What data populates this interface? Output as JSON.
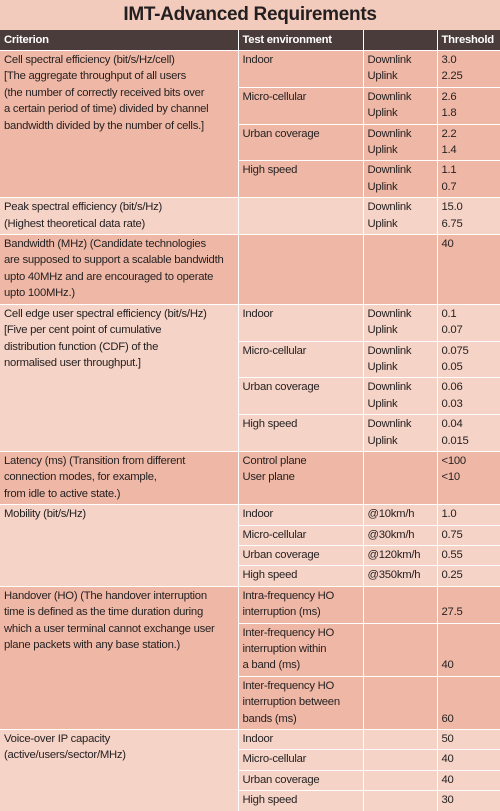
{
  "title": "IMT-Advanced Requirements",
  "headers": [
    "Criterion",
    "Test environment",
    "",
    "Threshold"
  ],
  "groups": [
    {
      "criterion": [
        "Cell spectral efficiency (bit/s/Hz/cell)",
        "[The aggregate throughput of all users",
        "(the number of correctly received bits over",
        "a certain period of time) divided by channel",
        "bandwidth divided by the number of cells.]"
      ],
      "rows": [
        {
          "env": [
            "Indoor"
          ],
          "dir": [
            "Downlink",
            "Uplink"
          ],
          "thr": [
            "3.0",
            "2.25"
          ]
        },
        {
          "env": [
            "Micro-cellular"
          ],
          "dir": [
            "Downlink",
            "Uplink"
          ],
          "thr": [
            "2.6",
            "1.8"
          ]
        },
        {
          "env": [
            "Urban coverage"
          ],
          "dir": [
            "Downlink",
            "Uplink"
          ],
          "thr": [
            "2.2",
            "1.4"
          ]
        },
        {
          "env": [
            "High speed"
          ],
          "dir": [
            "Downlink",
            "Uplink"
          ],
          "thr": [
            "1.1",
            "0.7"
          ]
        }
      ]
    },
    {
      "criterion": [
        "Peak spectral efficiency (bit/s/Hz)",
        "(Highest theoretical data rate)"
      ],
      "rows": [
        {
          "env": [],
          "dir": [
            "Downlink",
            "Uplink"
          ],
          "thr": [
            "15.0",
            "6.75"
          ]
        }
      ]
    },
    {
      "criterion": [
        "Bandwidth (MHz) (Candidate technologies",
        "are supposed to support a scalable bandwidth",
        "upto 40MHz and are encouraged to operate",
        "upto 100MHz.)"
      ],
      "rows": [
        {
          "env": [],
          "dir": [],
          "thr": [
            "40"
          ]
        }
      ]
    },
    {
      "criterion": [
        "Cell edge user spectral efficiency (bit/s/Hz)",
        "[Five per cent point of cumulative",
        "distribution function (CDF) of the",
        "normalised user throughput.]"
      ],
      "rows": [
        {
          "env": [
            "Indoor"
          ],
          "dir": [
            "Downlink",
            "Uplink"
          ],
          "thr": [
            "0.1",
            "0.07"
          ]
        },
        {
          "env": [
            "Micro-cellular"
          ],
          "dir": [
            "Downlink",
            "Uplink"
          ],
          "thr": [
            "0.075",
            "0.05"
          ]
        },
        {
          "env": [
            "Urban coverage"
          ],
          "dir": [
            "Downlink",
            "Uplink"
          ],
          "thr": [
            "0.06",
            "0.03"
          ]
        },
        {
          "env": [
            "High speed"
          ],
          "dir": [
            "Downlink",
            "Uplink"
          ],
          "thr": [
            "0.04",
            "0.015"
          ]
        }
      ]
    },
    {
      "criterion": [
        "Latency (ms) (Transition from different",
        "connection modes, for example,",
        "from idle to active state.)"
      ],
      "rows": [
        {
          "env": [
            "Control plane",
            "User plane"
          ],
          "dir": [],
          "thr": [
            "<100",
            "<10"
          ]
        }
      ]
    },
    {
      "criterion": [
        "Mobility (bit/s/Hz)"
      ],
      "rows": [
        {
          "env": [
            "Indoor"
          ],
          "dir": [
            "@10km/h"
          ],
          "thr": [
            "1.0"
          ]
        },
        {
          "env": [
            "Micro-cellular"
          ],
          "dir": [
            "@30km/h"
          ],
          "thr": [
            "0.75"
          ]
        },
        {
          "env": [
            "Urban coverage"
          ],
          "dir": [
            "@120km/h"
          ],
          "thr": [
            "0.55"
          ]
        },
        {
          "env": [
            "High speed"
          ],
          "dir": [
            "@350km/h"
          ],
          "thr": [
            "0.25"
          ]
        }
      ]
    },
    {
      "criterion": [
        "Handover (HO) (The handover interruption",
        "time is defined as the time duration during",
        "which a user terminal cannot exchange user",
        "plane packets with any base station.)"
      ],
      "rows": [
        {
          "env": [
            "Intra-frequency HO",
            "interruption (ms)"
          ],
          "dir": [],
          "thr": [
            "",
            "27.5"
          ]
        },
        {
          "env": [
            "Inter-frequency HO",
            "interruption within",
            "a band (ms)"
          ],
          "dir": [],
          "thr": [
            "",
            "",
            "40"
          ]
        },
        {
          "env": [
            "Inter-frequency HO",
            "interruption between",
            "bands (ms)"
          ],
          "dir": [],
          "thr": [
            "",
            "",
            "60"
          ]
        }
      ]
    },
    {
      "criterion": [
        "Voice-over IP capacity",
        "(active/users/sector/MHz)"
      ],
      "rows": [
        {
          "env": [
            "Indoor"
          ],
          "dir": [],
          "thr": [
            "50"
          ]
        },
        {
          "env": [
            "Micro-cellular"
          ],
          "dir": [],
          "thr": [
            "40"
          ]
        },
        {
          "env": [
            "Urban coverage"
          ],
          "dir": [],
          "thr": [
            "40"
          ]
        },
        {
          "env": [
            "High speed"
          ],
          "dir": [],
          "thr": [
            "30"
          ]
        }
      ]
    }
  ],
  "colors": {
    "header_bg": "#4a3c3a",
    "row_dark": "#efb8a6",
    "row_light": "#f5d3c6",
    "page_bg": "#f2cbbd"
  }
}
